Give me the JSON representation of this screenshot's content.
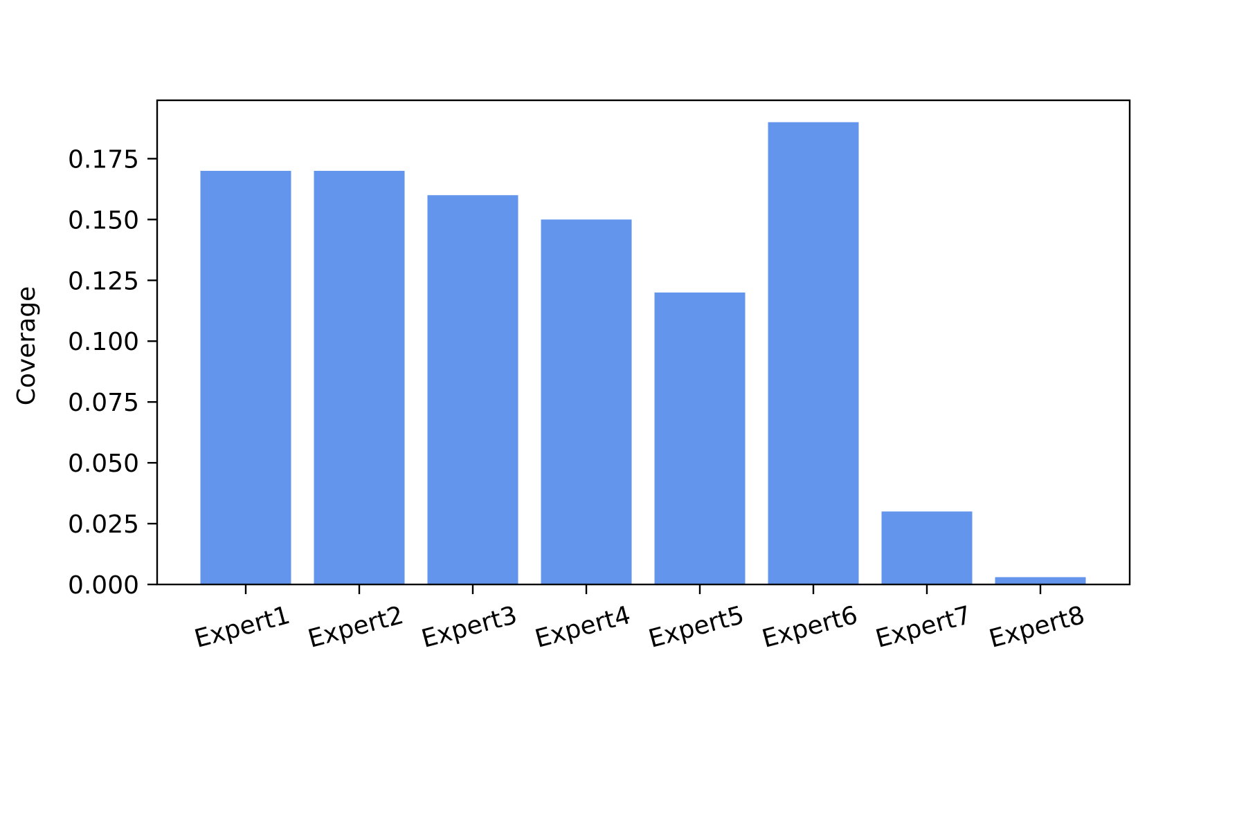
{
  "chart_data": {
    "type": "bar",
    "title": "",
    "xlabel": "",
    "ylabel": "Coverage",
    "categories": [
      "Expert1",
      "Expert2",
      "Expert3",
      "Expert4",
      "Expert5",
      "Expert6",
      "Expert7",
      "Expert8"
    ],
    "values": [
      0.17,
      0.17,
      0.16,
      0.15,
      0.12,
      0.19,
      0.03,
      0.003
    ],
    "ylim": [
      0,
      0.199
    ],
    "yticks": [
      0.0,
      0.025,
      0.05,
      0.075,
      0.1,
      0.125,
      0.15,
      0.175
    ],
    "ytick_labels": [
      "0.000",
      "0.025",
      "0.050",
      "0.075",
      "0.100",
      "0.125",
      "0.150",
      "0.175"
    ],
    "xtick_rotation": 15,
    "grid": false,
    "legend": false,
    "bar_color": "#6495ED",
    "axis_color": "#000000"
  }
}
